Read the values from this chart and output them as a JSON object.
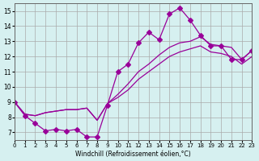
{
  "xlabel": "Windchill (Refroidissement éolien,°C)",
  "ylabel": "",
  "bg_color": "#d6f0f0",
  "line_color": "#990099",
  "grid_color": "#aaaaaa",
  "xlim": [
    0,
    23
  ],
  "ylim": [
    6.5,
    15.5
  ],
  "yticks": [
    7,
    8,
    9,
    10,
    11,
    12,
    13,
    14,
    15
  ],
  "xticks": [
    0,
    1,
    2,
    3,
    4,
    5,
    6,
    7,
    8,
    9,
    10,
    11,
    12,
    13,
    14,
    15,
    16,
    17,
    18,
    19,
    20,
    21,
    22,
    23
  ],
  "series": [
    {
      "x": [
        0,
        1,
        2,
        3,
        4,
        5,
        6,
        7,
        8,
        9,
        10,
        11,
        12,
        13,
        14,
        15,
        16,
        17,
        18,
        19,
        20,
        21,
        22,
        23
      ],
      "y": [
        9.0,
        8.1,
        7.6,
        7.1,
        7.2,
        7.1,
        7.2,
        6.7,
        6.7,
        8.8,
        11.0,
        11.5,
        12.9,
        13.6,
        13.1,
        14.8,
        15.2,
        14.4,
        13.4,
        12.7,
        12.7,
        11.8,
        11.8,
        12.4
      ],
      "marker": "D",
      "markersize": 3
    },
    {
      "x": [
        0,
        1,
        2,
        3,
        4,
        5,
        6,
        7,
        8,
        9,
        10,
        11,
        12,
        13,
        14,
        15,
        16,
        17,
        18,
        19,
        20,
        21,
        22,
        23
      ],
      "y": [
        9.0,
        8.2,
        8.1,
        8.3,
        8.4,
        8.5,
        8.5,
        8.6,
        7.8,
        8.9,
        9.5,
        10.2,
        11.0,
        11.5,
        12.1,
        12.6,
        12.9,
        13.0,
        13.3,
        12.8,
        12.7,
        12.6,
        11.8,
        12.4
      ],
      "marker": null,
      "markersize": 0
    },
    {
      "x": [
        0,
        1,
        2,
        3,
        4,
        5,
        6,
        7,
        8,
        9,
        10,
        11,
        12,
        13,
        14,
        15,
        16,
        17,
        18,
        19,
        20,
        21,
        22,
        23
      ],
      "y": [
        9.0,
        8.2,
        8.1,
        8.3,
        8.4,
        8.5,
        8.5,
        8.6,
        7.8,
        8.9,
        9.3,
        9.8,
        10.5,
        11.0,
        11.5,
        12.0,
        12.3,
        12.5,
        12.7,
        12.3,
        12.2,
        12.0,
        11.5,
        12.0
      ],
      "marker": null,
      "markersize": 0
    }
  ]
}
